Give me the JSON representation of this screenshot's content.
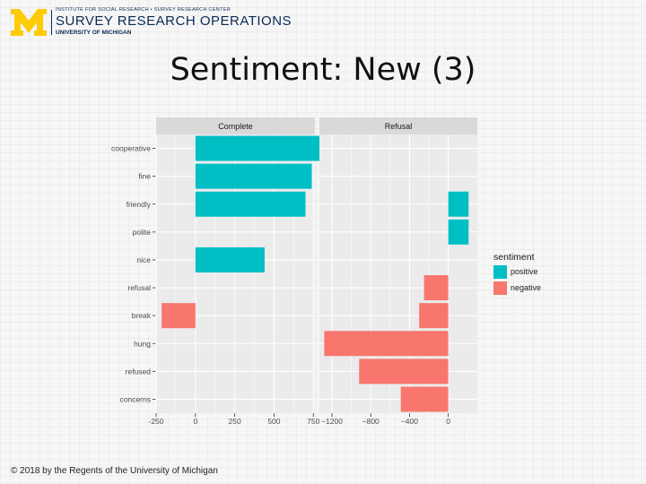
{
  "header": {
    "logo_line1": "INSTITUTE FOR SOCIAL RESEARCH • SURVEY RESEARCH CENTER",
    "logo_line2": "SURVEY RESEARCH OPERATIONS",
    "logo_line3": "UNIVERSITY OF MICHIGAN",
    "logo_mark": "M"
  },
  "slide": {
    "title": "Sentiment: New (3)",
    "footer": "© 2018 by the Regents of the University of Michigan"
  },
  "colors": {
    "positive": "#00bfc4",
    "negative": "#f8766d",
    "panel_bg": "#ebebeb",
    "strip_bg": "#d9d9d9",
    "grid": "#ffffff",
    "brand_maize": "#ffcb05",
    "brand_blue": "#0b2a55"
  },
  "chart_data": {
    "type": "bar",
    "orientation": "horizontal",
    "faceted": true,
    "categories": [
      "cooperative",
      "fine",
      "friendly",
      "polite",
      "nice",
      "refusal",
      "break",
      "hung",
      "refused",
      "concerns"
    ],
    "legend": {
      "title": "sentiment",
      "position": "right",
      "entries": [
        {
          "name": "positive",
          "color": "#00bfc4"
        },
        {
          "name": "negative",
          "color": "#f8766d"
        }
      ]
    },
    "panels": [
      {
        "strip": "Complete",
        "xlim": [
          -250,
          760
        ],
        "xticks": [
          -250,
          0,
          250,
          500,
          750
        ],
        "xtick_labels": [
          "-250",
          "0",
          "250",
          "500",
          "750"
        ],
        "bars": [
          {
            "category": "cooperative",
            "value": 790,
            "sentiment": "positive"
          },
          {
            "category": "fine",
            "value": 740,
            "sentiment": "positive"
          },
          {
            "category": "friendly",
            "value": 700,
            "sentiment": "positive"
          },
          {
            "category": "nice",
            "value": 440,
            "sentiment": "positive"
          },
          {
            "category": "break",
            "value": -215,
            "sentiment": "negative"
          }
        ]
      },
      {
        "strip": "Refusal",
        "xlim": [
          -1330,
          300
        ],
        "xticks": [
          -1200,
          -800,
          -400,
          0
        ],
        "xtick_labels": [
          "−1200",
          "−800",
          "−400",
          "0"
        ],
        "bars": [
          {
            "category": "polite",
            "value": 210,
            "sentiment": "positive"
          },
          {
            "category": "friendly",
            "value": 210,
            "sentiment": "positive"
          },
          {
            "category": "refusal",
            "value": -250,
            "sentiment": "negative"
          },
          {
            "category": "break",
            "value": -300,
            "sentiment": "negative"
          },
          {
            "category": "hung",
            "value": -1280,
            "sentiment": "negative"
          },
          {
            "category": "refused",
            "value": -920,
            "sentiment": "negative"
          },
          {
            "category": "concerns",
            "value": -490,
            "sentiment": "negative"
          }
        ]
      }
    ],
    "grid": true
  }
}
